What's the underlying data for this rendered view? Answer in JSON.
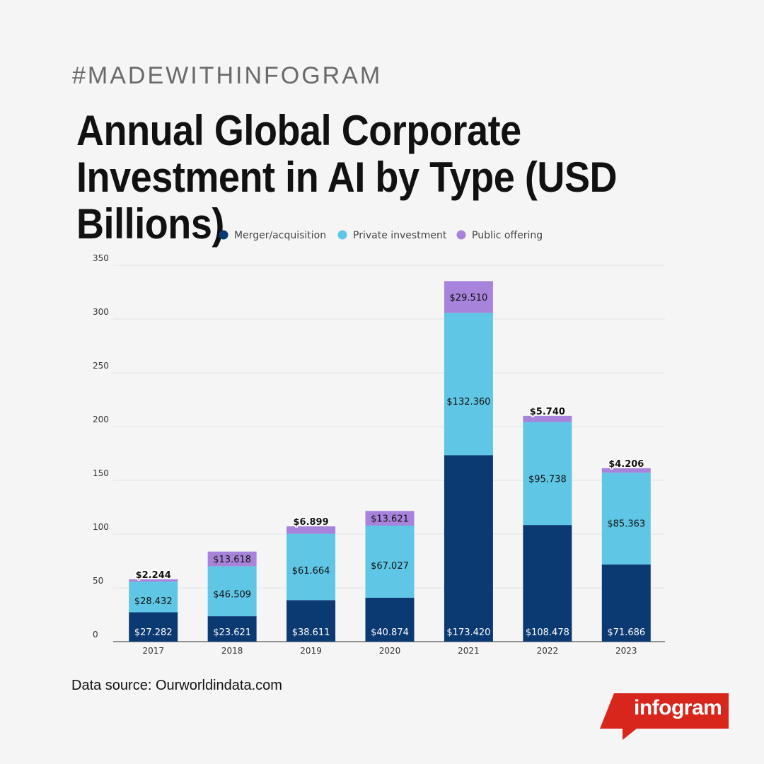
{
  "header": {
    "hashtag": "#MADEWITHINFOGRAM",
    "title": "Annual Global Corporate Investment in AI by Type (USD Billions)"
  },
  "footer": {
    "source": "Data source: Ourworldindata.com",
    "brand": "infogram"
  },
  "colors": {
    "merger": "#0b3a73",
    "private": "#5fc6e6",
    "public": "#a783db",
    "brand_red": "#d9261c"
  },
  "chart_data": {
    "type": "bar",
    "stacked": true,
    "categories": [
      "2017",
      "2018",
      "2019",
      "2020",
      "2021",
      "2022",
      "2023"
    ],
    "series": [
      {
        "name": "Merger/acquisition",
        "values": [
          27.282,
          23.621,
          38.611,
          40.874,
          173.42,
          108.478,
          71.686
        ],
        "labels": [
          "$27.282",
          "$23.621",
          "$38.611",
          "$40.874",
          "$173.420",
          "$108.478",
          "$71.686"
        ]
      },
      {
        "name": "Private investment",
        "values": [
          28.432,
          46.509,
          61.664,
          67.027,
          132.36,
          95.738,
          85.363
        ],
        "labels": [
          "$28.432",
          "$46.509",
          "$61.664",
          "$67.027",
          "$132.360",
          "$95.738",
          "$85.363"
        ]
      },
      {
        "name": "Public offering",
        "values": [
          2.244,
          13.618,
          6.899,
          13.621,
          29.51,
          5.74,
          4.206
        ],
        "labels": [
          "$2.244",
          "$13.618",
          "$6.899",
          "$13.621",
          "$29.510",
          "$5.740",
          "$4.206"
        ]
      }
    ],
    "yticks": [
      "0",
      "50",
      "100",
      "150",
      "200",
      "250",
      "300",
      "350"
    ],
    "ylim": [
      0,
      350
    ],
    "grid": true,
    "legend": "top-center"
  }
}
